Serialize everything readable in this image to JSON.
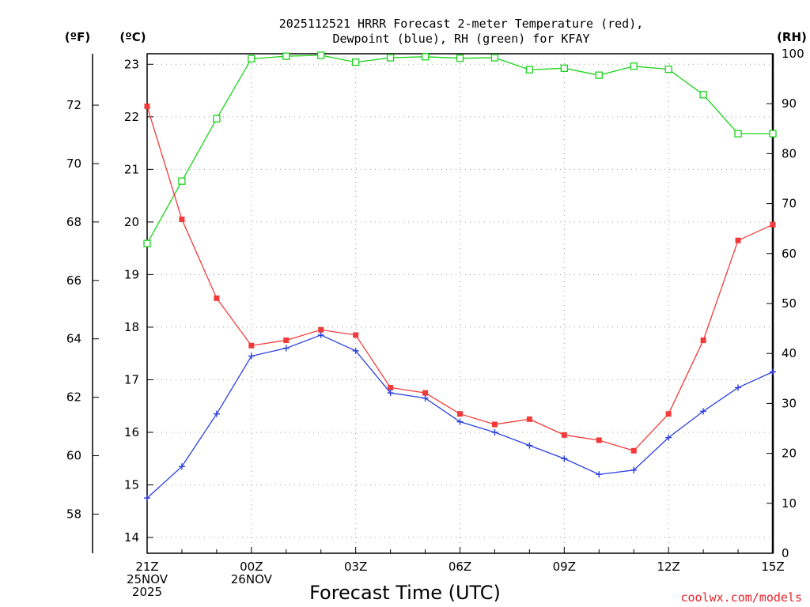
{
  "chart_data": {
    "type": "line",
    "title_line1": "2025112521 HRRR Forecast 2-meter Temperature (red),",
    "title_line2": "Dewpoint (blue), RH (green) for KFAY",
    "xlabel": "Forecast Time (UTC)",
    "credit": "coolwx.com/models",
    "units": {
      "fahrenheit": "(ºF)",
      "celsius": "(ºC)",
      "rh": "(RH)"
    },
    "x": [
      0,
      1,
      2,
      3,
      4,
      5,
      6,
      7,
      8,
      9,
      10,
      11,
      12,
      13,
      14,
      15,
      16,
      17,
      18
    ],
    "xlim": [
      0,
      18
    ],
    "x_ticks": [
      {
        "x": 0,
        "lines": [
          "21Z",
          "25NOV",
          "2025"
        ]
      },
      {
        "x": 3,
        "lines": [
          "00Z",
          "26NOV"
        ]
      },
      {
        "x": 6,
        "lines": [
          "03Z"
        ]
      },
      {
        "x": 9,
        "lines": [
          "06Z"
        ]
      },
      {
        "x": 12,
        "lines": [
          "09Z"
        ]
      },
      {
        "x": 15,
        "lines": [
          "12Z"
        ]
      },
      {
        "x": 18,
        "lines": [
          "15Z"
        ]
      }
    ],
    "x_grid": [
      3,
      6,
      9,
      12,
      15
    ],
    "celsius_axis": {
      "min": 13.7,
      "max": 23.2,
      "ticks": [
        "14",
        "15",
        "16",
        "17",
        "18",
        "19",
        "20",
        "21",
        "22",
        "23"
      ]
    },
    "fahrenheit_axis": {
      "ticks": [
        "58",
        "60",
        "62",
        "64",
        "66",
        "68",
        "70",
        "72"
      ]
    },
    "rh_axis": {
      "min": 0,
      "max": 100,
      "ticks": [
        "0",
        "10",
        "20",
        "30",
        "40",
        "50",
        "60",
        "70",
        "80",
        "90",
        "100"
      ]
    },
    "colors": {
      "temperature": "#f23a3a",
      "dewpoint": "#2b3fe0",
      "rh": "#19d419"
    },
    "series": [
      {
        "name": "Temperature",
        "units": "C",
        "marker": "filled-square",
        "values": [
          22.2,
          20.05,
          18.55,
          17.65,
          17.75,
          17.95,
          17.85,
          16.85,
          16.75,
          16.35,
          16.15,
          16.25,
          15.95,
          15.85,
          15.65,
          16.35,
          17.75,
          19.65,
          19.95
        ]
      },
      {
        "name": "Dewpoint",
        "units": "C",
        "marker": "plus",
        "values": [
          14.75,
          15.35,
          16.35,
          17.45,
          17.6,
          17.85,
          17.55,
          16.75,
          16.65,
          16.2,
          16.0,
          15.75,
          15.5,
          15.2,
          15.28,
          15.9,
          16.4,
          16.85,
          17.15
        ]
      },
      {
        "name": "RH",
        "units": "%",
        "marker": "open-square",
        "values": [
          62,
          74.5,
          87,
          99,
          99.5,
          99.7,
          98.3,
          99.2,
          99.4,
          99.1,
          99.2,
          96.8,
          97.1,
          95.7,
          97.5,
          96.9,
          91.8,
          84,
          84
        ]
      }
    ]
  }
}
